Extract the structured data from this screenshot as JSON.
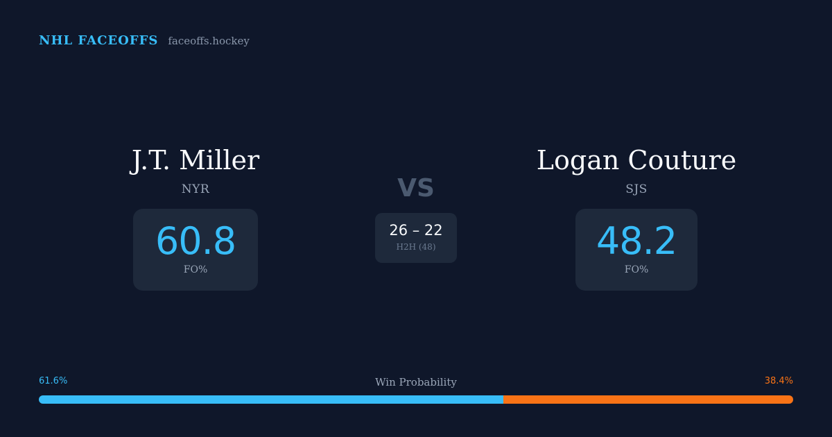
{
  "brand": {
    "title": "NHL FACEOFFS",
    "domain": "faceoffs.hockey"
  },
  "players": {
    "left": {
      "name": "J.T. Miller",
      "team": "NYR",
      "stat_value": "60.8",
      "stat_label": "FO%"
    },
    "right": {
      "name": "Logan Couture",
      "team": "SJS",
      "stat_value": "48.2",
      "stat_label": "FO%"
    }
  },
  "matchup": {
    "vs_label": "VS",
    "h2h_score": "26 – 22",
    "h2h_label": "H2H (48)"
  },
  "win_probability": {
    "title": "Win Probability",
    "left_label": "61.6%",
    "right_label": "38.4%",
    "left_fraction": 0.616,
    "right_fraction": 0.384
  },
  "colors": {
    "background": "#0f172a",
    "card": "#1e293b",
    "accent_blue": "#38bdf8",
    "accent_orange": "#f97316"
  }
}
